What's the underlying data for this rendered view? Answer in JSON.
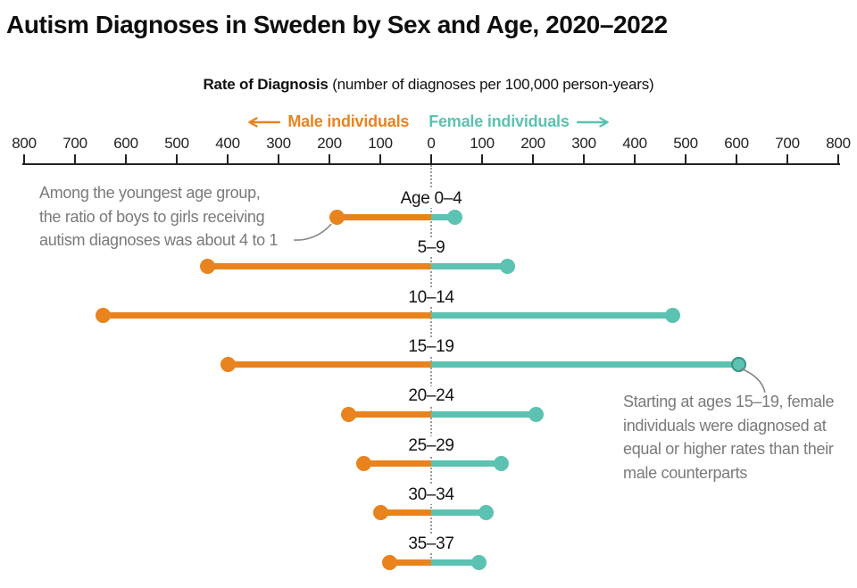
{
  "chart_data": {
    "type": "bar",
    "variant": "diverging-lollipop",
    "title": "Autism Diagnoses in Sweden by Sex and Age, 2020–2022",
    "subtitle_bold": "Rate of Diagnosis",
    "subtitle_rest": " (number of diagnoses per 100,000 person-years)",
    "categories": [
      "Age 0–4",
      "5–9",
      "10–14",
      "15–19",
      "20–24",
      "25–29",
      "30–34",
      "35–37"
    ],
    "series": [
      {
        "name": "Male individuals",
        "side": "left",
        "color": "#E9831E",
        "values": [
          185,
          440,
          645,
          400,
          163,
          133,
          100,
          82
        ]
      },
      {
        "name": "Female individuals",
        "side": "right",
        "color": "#5CC2B2",
        "values": [
          47,
          150,
          475,
          605,
          207,
          137,
          108,
          93
        ],
        "highlight_index": 3
      }
    ],
    "axis_ticks_left_to_right": [
      800,
      700,
      600,
      500,
      400,
      300,
      200,
      100,
      0,
      100,
      200,
      300,
      400,
      500,
      600,
      700,
      800
    ],
    "x_axis_units_per_side": [
      0,
      800
    ],
    "grid": "none",
    "legend_position": "top-center",
    "legend": {
      "male_label": "Male individuals",
      "female_label": "Female individuals"
    },
    "annotations": {
      "left": {
        "target": "Age 0–4 male point",
        "lines": [
          "Among the youngest age group,",
          "the ratio of boys to girls receiving",
          "autism diagnoses was about 4 to 1"
        ]
      },
      "right": {
        "target": "15–19 female point",
        "lines": [
          "Starting at ages 15–19, female",
          "individuals were diagnosed at",
          "equal or higher rates than their",
          "male counterparts"
        ]
      }
    },
    "colors": {
      "male": "#E9831E",
      "female": "#5CC2B2",
      "axis": "#222222",
      "dotted_center_line": "#9a9a9a",
      "annotation_text": "#7a7a7a",
      "connector_line": "#858585",
      "title_text": "#0e0e0e"
    }
  }
}
